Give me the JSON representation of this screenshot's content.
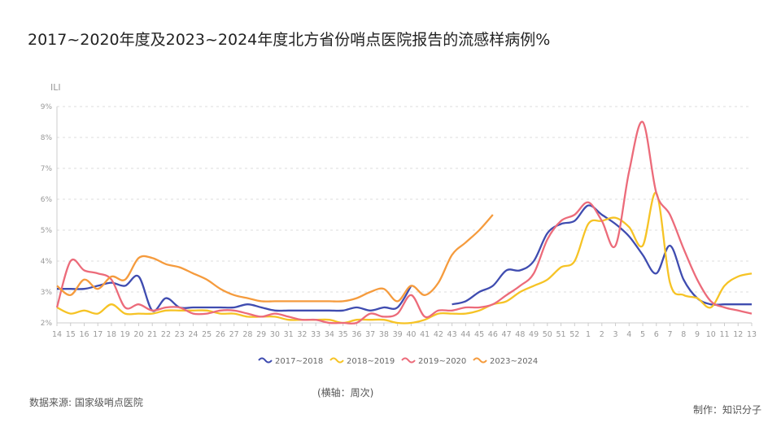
{
  "title": "2017~2020年度及2023~2024年度北方省份哨点医院报告的流感样病例%",
  "source": "数据来源: 国家级哨点医院",
  "x_note": "(横轴：周次)",
  "credit": "制作：知识分子",
  "chart_data": {
    "type": "line",
    "title": "2017~2020年度及2023~2024年度北方省份哨点医院报告的流感样病例%",
    "ylabel": "ILI",
    "xlabel": "(横轴：周次)",
    "ylim": [
      2,
      9
    ],
    "yticks": [
      "2%",
      "3%",
      "4%",
      "5%",
      "6%",
      "7%",
      "8%",
      "9%"
    ],
    "grid": true,
    "legend_position": "bottom",
    "categories": [
      "14",
      "15",
      "16",
      "17",
      "18",
      "19",
      "20",
      "21",
      "22",
      "23",
      "24",
      "25",
      "26",
      "27",
      "28",
      "29",
      "30",
      "31",
      "32",
      "33",
      "34",
      "35",
      "36",
      "37",
      "38",
      "39",
      "40",
      "41",
      "42",
      "43",
      "44",
      "45",
      "46",
      "47",
      "48",
      "49",
      "50",
      "51",
      "52",
      "1",
      "2",
      "3",
      "4",
      "5",
      "6",
      "7",
      "8",
      "9",
      "10",
      "11",
      "12",
      "13"
    ],
    "series": [
      {
        "name": "2017~2018",
        "color": "#3f4cb0",
        "values": [
          3.1,
          3.1,
          3.1,
          3.2,
          3.3,
          3.2,
          3.5,
          2.4,
          2.8,
          2.5,
          2.5,
          2.5,
          2.5,
          2.5,
          2.6,
          2.5,
          2.4,
          2.4,
          2.4,
          2.4,
          2.4,
          2.4,
          2.5,
          2.4,
          2.5,
          2.5,
          3.2,
          null,
          null,
          2.6,
          2.7,
          3.0,
          3.2,
          3.7,
          3.7,
          4.0,
          4.9,
          5.2,
          5.3,
          5.8,
          5.5,
          5.2,
          4.8,
          4.2,
          3.6,
          4.5,
          3.4,
          2.8,
          2.6,
          2.6,
          2.6,
          2.6
        ]
      },
      {
        "name": "2018~2019",
        "color": "#f6c325",
        "values": [
          2.5,
          2.3,
          2.4,
          2.3,
          2.6,
          2.3,
          2.3,
          2.3,
          2.4,
          2.4,
          2.4,
          2.4,
          2.3,
          2.3,
          2.2,
          2.2,
          2.2,
          2.1,
          2.1,
          2.1,
          2.1,
          2.0,
          2.1,
          2.1,
          2.1,
          2.0,
          2.0,
          2.1,
          2.3,
          2.3,
          2.3,
          2.4,
          2.6,
          2.7,
          3.0,
          3.2,
          3.4,
          3.8,
          4.0,
          5.2,
          5.3,
          5.4,
          5.1,
          4.5,
          6.2,
          3.3,
          2.9,
          2.8,
          2.5,
          3.2,
          3.5,
          3.6
        ]
      },
      {
        "name": "2019~2020",
        "color": "#ec6b7a",
        "values": [
          2.5,
          4.0,
          3.7,
          3.6,
          3.4,
          2.5,
          2.6,
          2.4,
          2.5,
          2.5,
          2.3,
          2.3,
          2.4,
          2.4,
          2.3,
          2.2,
          2.3,
          2.2,
          2.1,
          2.1,
          2.0,
          2.0,
          2.0,
          2.3,
          2.2,
          2.3,
          2.9,
          2.2,
          2.4,
          2.4,
          2.5,
          2.5,
          2.6,
          2.9,
          3.2,
          3.6,
          4.7,
          5.3,
          5.5,
          5.9,
          5.3,
          4.5,
          6.9,
          8.5,
          6.2,
          5.5,
          4.4,
          3.4,
          2.7,
          2.5,
          2.4,
          2.3
        ]
      },
      {
        "name": "2023~2024",
        "color": "#f59b3d",
        "values": [
          3.2,
          2.9,
          3.4,
          3.1,
          3.5,
          3.4,
          4.1,
          4.1,
          3.9,
          3.8,
          3.6,
          3.4,
          3.1,
          2.9,
          2.8,
          2.7,
          2.7,
          2.7,
          2.7,
          2.7,
          2.7,
          2.7,
          2.8,
          3.0,
          3.1,
          2.7,
          3.2,
          2.9,
          3.3,
          4.2,
          4.6,
          5.0,
          5.5,
          null,
          null,
          null,
          null,
          null,
          null,
          null,
          null,
          null,
          null,
          null,
          null,
          null,
          null,
          null,
          null,
          null,
          null,
          null
        ]
      }
    ]
  }
}
